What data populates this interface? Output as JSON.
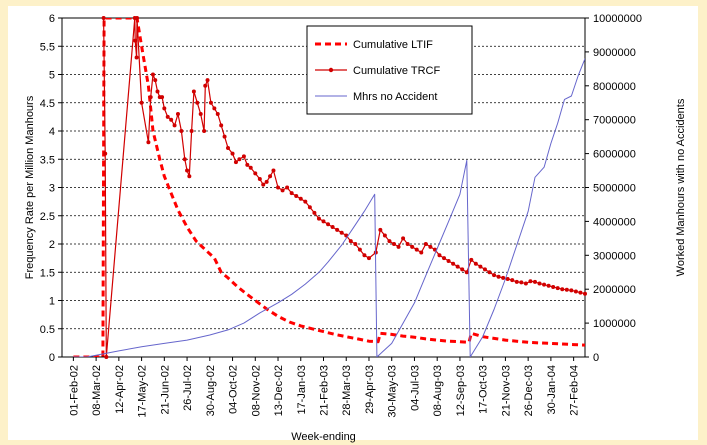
{
  "page": {
    "background": "#fdf1c9"
  },
  "chart_data": {
    "type": "line",
    "title": "",
    "xlabel": "Week-ending",
    "ylabel": "Frequency Rate per Million Manhours",
    "y2label": "Worked Manhours with no Accidents",
    "ylim": [
      0,
      6
    ],
    "y2lim": [
      0,
      10000000
    ],
    "y_ticks": [
      "0",
      "0.5",
      "1",
      "1.5",
      "2",
      "2.5",
      "3",
      "3.5",
      "4",
      "4.5",
      "5",
      "5.5",
      "6"
    ],
    "y2_ticks": [
      "0",
      "1000000",
      "2000000",
      "3000000",
      "4000000",
      "5000000",
      "6000000",
      "7000000",
      "8000000",
      "9000000",
      "10000000"
    ],
    "x_ticks": [
      "01-Feb-02",
      "08-Mar-02",
      "12-Apr-02",
      "17-May-02",
      "21-Jun-02",
      "26-Jul-02",
      "30-Aug-02",
      "04-Oct-02",
      "08-Nov-02",
      "13-Dec-02",
      "17-Jan-03",
      "21-Feb-03",
      "28-Mar-03",
      "29-Apr-03",
      "30-May-03",
      "04-Jul-03",
      "08-Aug-03",
      "12-Sep-03",
      "17-Oct-03",
      "21-Nov-03",
      "26-Dec-03",
      "30-Jan-04",
      "27-Feb-04"
    ],
    "grid": true,
    "legend": "top-center",
    "series": [
      {
        "name": "Cumulative LTIF",
        "axis": "left",
        "color": "#ff0000",
        "style": "thick-dashed",
        "points": [
          [
            0,
            0
          ],
          [
            0.8,
            0
          ],
          [
            1.3,
            0
          ],
          [
            1.35,
            6
          ],
          [
            2.8,
            6
          ],
          [
            3.0,
            5.5
          ],
          [
            3.3,
            4.8
          ],
          [
            3.5,
            4.0
          ],
          [
            3.8,
            3.5
          ],
          [
            4.0,
            3.2
          ],
          [
            4.3,
            2.9
          ],
          [
            4.6,
            2.6
          ],
          [
            5.0,
            2.3
          ],
          [
            5.4,
            2.05
          ],
          [
            5.8,
            1.9
          ],
          [
            6.2,
            1.75
          ],
          [
            6.5,
            1.5
          ],
          [
            6.8,
            1.4
          ],
          [
            7.2,
            1.25
          ],
          [
            7.6,
            1.12
          ],
          [
            8.0,
            1.0
          ],
          [
            8.5,
            0.85
          ],
          [
            9.0,
            0.72
          ],
          [
            9.5,
            0.62
          ],
          [
            10.0,
            0.55
          ],
          [
            10.5,
            0.5
          ],
          [
            11.0,
            0.45
          ],
          [
            11.5,
            0.4
          ],
          [
            12.0,
            0.36
          ],
          [
            12.5,
            0.32
          ],
          [
            13.0,
            0.28
          ],
          [
            13.4,
            0.27
          ],
          [
            13.5,
            0.42
          ],
          [
            14.0,
            0.4
          ],
          [
            14.5,
            0.37
          ],
          [
            15.0,
            0.35
          ],
          [
            15.5,
            0.32
          ],
          [
            16.0,
            0.3
          ],
          [
            16.5,
            0.28
          ],
          [
            17.0,
            0.27
          ],
          [
            17.4,
            0.26
          ],
          [
            17.5,
            0.42
          ],
          [
            18.0,
            0.36
          ],
          [
            18.5,
            0.33
          ],
          [
            19.0,
            0.3
          ],
          [
            19.5,
            0.28
          ],
          [
            20.0,
            0.26
          ],
          [
            20.5,
            0.25
          ],
          [
            21.0,
            0.24
          ],
          [
            21.5,
            0.23
          ],
          [
            22.0,
            0.22
          ],
          [
            22.5,
            0.21
          ]
        ]
      },
      {
        "name": "Cumulative TRCF",
        "axis": "left",
        "color": "#d10000",
        "style": "line-markers",
        "points": [
          [
            1.33,
            6
          ],
          [
            1.4,
            3.6
          ],
          [
            1.45,
            0
          ],
          [
            2.7,
            6
          ],
          [
            2.72,
            5.6
          ],
          [
            2.78,
            5.3
          ],
          [
            2.8,
            6
          ],
          [
            3.0,
            4.5
          ],
          [
            3.3,
            3.8
          ],
          [
            3.4,
            4.6
          ],
          [
            3.5,
            5.0
          ],
          [
            3.6,
            4.9
          ],
          [
            3.7,
            4.7
          ],
          [
            3.8,
            4.6
          ],
          [
            3.9,
            4.6
          ],
          [
            4.0,
            4.4
          ],
          [
            4.15,
            4.25
          ],
          [
            4.3,
            4.2
          ],
          [
            4.45,
            4.1
          ],
          [
            4.6,
            4.3
          ],
          [
            4.75,
            4.0
          ],
          [
            4.9,
            3.5
          ],
          [
            5.0,
            3.3
          ],
          [
            5.1,
            3.2
          ],
          [
            5.2,
            4.0
          ],
          [
            5.3,
            4.7
          ],
          [
            5.45,
            4.5
          ],
          [
            5.6,
            4.3
          ],
          [
            5.75,
            4.0
          ],
          [
            5.8,
            4.8
          ],
          [
            5.9,
            4.9
          ],
          [
            6.05,
            4.5
          ],
          [
            6.2,
            4.4
          ],
          [
            6.35,
            4.3
          ],
          [
            6.5,
            4.1
          ],
          [
            6.65,
            3.9
          ],
          [
            6.8,
            3.7
          ],
          [
            7.0,
            3.6
          ],
          [
            7.15,
            3.45
          ],
          [
            7.3,
            3.5
          ],
          [
            7.5,
            3.55
          ],
          [
            7.65,
            3.4
          ],
          [
            7.8,
            3.35
          ],
          [
            8.0,
            3.25
          ],
          [
            8.2,
            3.15
          ],
          [
            8.35,
            3.05
          ],
          [
            8.5,
            3.1
          ],
          [
            8.65,
            3.2
          ],
          [
            8.8,
            3.3
          ],
          [
            9.0,
            3.0
          ],
          [
            9.2,
            2.95
          ],
          [
            9.4,
            3.0
          ],
          [
            9.6,
            2.9
          ],
          [
            9.8,
            2.85
          ],
          [
            10.0,
            2.8
          ],
          [
            10.2,
            2.75
          ],
          [
            10.4,
            2.65
          ],
          [
            10.6,
            2.55
          ],
          [
            10.8,
            2.45
          ],
          [
            11.0,
            2.4
          ],
          [
            11.2,
            2.35
          ],
          [
            11.4,
            2.3
          ],
          [
            11.6,
            2.25
          ],
          [
            11.8,
            2.2
          ],
          [
            12.0,
            2.15
          ],
          [
            12.2,
            2.05
          ],
          [
            12.4,
            2.0
          ],
          [
            12.6,
            1.9
          ],
          [
            12.8,
            1.8
          ],
          [
            13.0,
            1.75
          ],
          [
            13.3,
            1.85
          ],
          [
            13.5,
            2.25
          ],
          [
            13.7,
            2.15
          ],
          [
            13.9,
            2.05
          ],
          [
            14.1,
            2.0
          ],
          [
            14.3,
            1.95
          ],
          [
            14.5,
            2.1
          ],
          [
            14.7,
            2.0
          ],
          [
            14.9,
            1.95
          ],
          [
            15.1,
            1.9
          ],
          [
            15.3,
            1.85
          ],
          [
            15.5,
            2.0
          ],
          [
            15.7,
            1.95
          ],
          [
            15.9,
            1.9
          ],
          [
            16.1,
            1.8
          ],
          [
            16.3,
            1.75
          ],
          [
            16.5,
            1.7
          ],
          [
            16.7,
            1.65
          ],
          [
            16.9,
            1.6
          ],
          [
            17.1,
            1.55
          ],
          [
            17.3,
            1.5
          ],
          [
            17.5,
            1.72
          ],
          [
            17.7,
            1.65
          ],
          [
            17.9,
            1.6
          ],
          [
            18.1,
            1.55
          ],
          [
            18.3,
            1.5
          ],
          [
            18.5,
            1.45
          ],
          [
            18.7,
            1.42
          ],
          [
            18.9,
            1.4
          ],
          [
            19.1,
            1.38
          ],
          [
            19.3,
            1.36
          ],
          [
            19.5,
            1.33
          ],
          [
            19.7,
            1.32
          ],
          [
            19.9,
            1.3
          ],
          [
            20.1,
            1.34
          ],
          [
            20.3,
            1.33
          ],
          [
            20.5,
            1.3
          ],
          [
            20.7,
            1.28
          ],
          [
            20.9,
            1.26
          ],
          [
            21.1,
            1.24
          ],
          [
            21.3,
            1.22
          ],
          [
            21.5,
            1.2
          ],
          [
            21.7,
            1.19
          ],
          [
            21.9,
            1.18
          ],
          [
            22.1,
            1.16
          ],
          [
            22.3,
            1.14
          ],
          [
            22.5,
            1.12
          ]
        ]
      },
      {
        "name": "Mhrs no Accident",
        "axis": "right",
        "color": "#6666cc",
        "style": "thin-line",
        "points": [
          [
            0,
            0
          ],
          [
            0.6,
            0
          ],
          [
            1.0,
            50000
          ],
          [
            2.0,
            180000
          ],
          [
            3.0,
            300000
          ],
          [
            4.0,
            400000
          ],
          [
            5.0,
            500000
          ],
          [
            6.0,
            650000
          ],
          [
            6.8,
            800000
          ],
          [
            7.5,
            1000000
          ],
          [
            8.2,
            1300000
          ],
          [
            9.0,
            1600000
          ],
          [
            9.6,
            1850000
          ],
          [
            10.2,
            2150000
          ],
          [
            10.8,
            2500000
          ],
          [
            11.2,
            2800000
          ],
          [
            11.8,
            3300000
          ],
          [
            12.3,
            3800000
          ],
          [
            12.8,
            4300000
          ],
          [
            13.25,
            4800000
          ],
          [
            13.35,
            0
          ],
          [
            14.0,
            400000
          ],
          [
            14.5,
            1000000
          ],
          [
            15.0,
            1600000
          ],
          [
            15.5,
            2400000
          ],
          [
            16.0,
            3200000
          ],
          [
            16.5,
            4000000
          ],
          [
            17.0,
            4800000
          ],
          [
            17.3,
            5800000
          ],
          [
            17.45,
            0
          ],
          [
            18.0,
            600000
          ],
          [
            18.5,
            1400000
          ],
          [
            19.0,
            2300000
          ],
          [
            19.5,
            3300000
          ],
          [
            20.0,
            4300000
          ],
          [
            20.3,
            5300000
          ],
          [
            20.7,
            5600000
          ],
          [
            21.0,
            6300000
          ],
          [
            21.3,
            6900000
          ],
          [
            21.6,
            7600000
          ],
          [
            21.9,
            7700000
          ],
          [
            22.2,
            8300000
          ],
          [
            22.5,
            8800000
          ]
        ]
      }
    ]
  }
}
